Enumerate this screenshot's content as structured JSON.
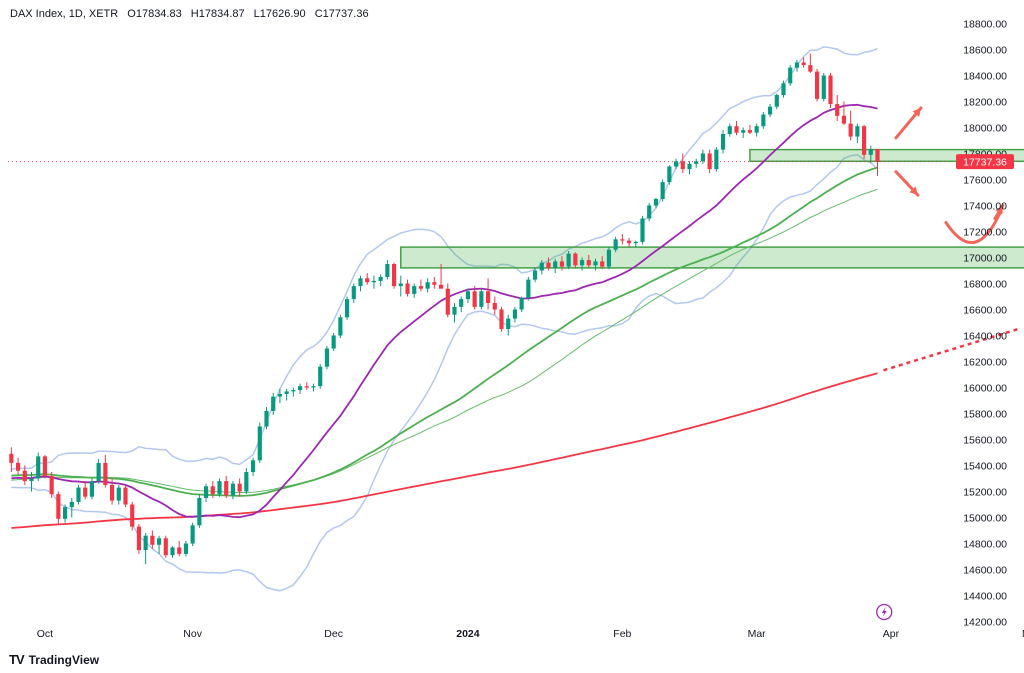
{
  "header": {
    "symbol": "DAX Index, 1D, XETR",
    "open": "O17834.83",
    "high": "H17834.87",
    "low": "L17626.90",
    "close": "C17737.36"
  },
  "branding": {
    "logo_text": "TradingView",
    "logo_icon": "tradingview-logo-icon"
  },
  "price_label": {
    "text": "17737.36",
    "color": "#f23645"
  },
  "chart_data": {
    "type": "candlestick",
    "title": "DAX Index, 1D, XETR",
    "y_axis": {
      "ticks": [
        "18800.00",
        "18600.00",
        "18400.00",
        "18200.00",
        "18000.00",
        "17800.00",
        "17600.00",
        "17400.00",
        "17200.00",
        "17000.00",
        "16800.00",
        "16600.00",
        "16400.00",
        "16200.00",
        "16000.00",
        "15800.00",
        "15600.00",
        "15400.00",
        "15200.00",
        "15000.00",
        "14800.00",
        "14600.00",
        "14400.00",
        "14200.00"
      ],
      "range": [
        14150,
        18950
      ]
    },
    "x_axis": {
      "labels": [
        {
          "text": "Oct",
          "bold": false,
          "t": 5
        },
        {
          "text": "Nov",
          "bold": false,
          "t": 27
        },
        {
          "text": "Dec",
          "bold": false,
          "t": 48
        },
        {
          "text": "2024",
          "bold": true,
          "t": 68
        },
        {
          "text": "Feb",
          "bold": false,
          "t": 91
        },
        {
          "text": "Mar",
          "bold": false,
          "t": 111
        },
        {
          "text": "Apr",
          "bold": false,
          "t": 131
        },
        {
          "text": "May",
          "bold": false,
          "t": 152
        }
      ],
      "days_shown": 140
    },
    "candles": [
      [
        15490,
        15540,
        15350,
        15420
      ],
      [
        15420,
        15460,
        15330,
        15360
      ],
      [
        15360,
        15400,
        15250,
        15280
      ],
      [
        15280,
        15350,
        15200,
        15300
      ],
      [
        15300,
        15500,
        15280,
        15470
      ],
      [
        15470,
        15480,
        15300,
        15320
      ],
      [
        15320,
        15350,
        15150,
        15180
      ],
      [
        15180,
        15200,
        14950,
        14990
      ],
      [
        14990,
        15100,
        14960,
        15080
      ],
      [
        15080,
        15150,
        15000,
        15120
      ],
      [
        15120,
        15250,
        15100,
        15230
      ],
      [
        15230,
        15280,
        15140,
        15160
      ],
      [
        15160,
        15300,
        15140,
        15280
      ],
      [
        15280,
        15450,
        15260,
        15420
      ],
      [
        15420,
        15480,
        15230,
        15250
      ],
      [
        15250,
        15300,
        15100,
        15130
      ],
      [
        15130,
        15250,
        15100,
        15230
      ],
      [
        15230,
        15250,
        15080,
        15100
      ],
      [
        15100,
        15120,
        14900,
        14930
      ],
      [
        14930,
        14950,
        14720,
        14750
      ],
      [
        14750,
        14880,
        14640,
        14860
      ],
      [
        14860,
        14900,
        14760,
        14790
      ],
      [
        14790,
        14860,
        14720,
        14840
      ],
      [
        14840,
        14860,
        14690,
        14710
      ],
      [
        14710,
        14780,
        14690,
        14770
      ],
      [
        14770,
        14820,
        14700,
        14720
      ],
      [
        14720,
        14820,
        14700,
        14800
      ],
      [
        14800,
        14960,
        14780,
        14940
      ],
      [
        14940,
        15180,
        14920,
        15150
      ],
      [
        15150,
        15260,
        15120,
        15240
      ],
      [
        15240,
        15280,
        15150,
        15180
      ],
      [
        15180,
        15300,
        15160,
        15280
      ],
      [
        15280,
        15320,
        15150,
        15170
      ],
      [
        15170,
        15280,
        15140,
        15260
      ],
      [
        15260,
        15300,
        15160,
        15200
      ],
      [
        15200,
        15380,
        15180,
        15350
      ],
      [
        15350,
        15460,
        15320,
        15440
      ],
      [
        15440,
        15730,
        15420,
        15700
      ],
      [
        15700,
        15850,
        15680,
        15820
      ],
      [
        15820,
        15960,
        15790,
        15930
      ],
      [
        15930,
        15990,
        15880,
        15950
      ],
      [
        15950,
        15990,
        15900,
        15970
      ],
      [
        15970,
        16000,
        15930,
        15980
      ],
      [
        15980,
        16030,
        15950,
        16010
      ],
      [
        16010,
        16040,
        15980,
        16000
      ],
      [
        16000,
        16030,
        15970,
        16010
      ],
      [
        16010,
        16180,
        15990,
        16160
      ],
      [
        16160,
        16320,
        16140,
        16300
      ],
      [
        16300,
        16420,
        16280,
        16400
      ],
      [
        16400,
        16560,
        16380,
        16540
      ],
      [
        16540,
        16700,
        16520,
        16680
      ],
      [
        16680,
        16800,
        16650,
        16780
      ],
      [
        16780,
        16860,
        16740,
        16840
      ],
      [
        16840,
        16880,
        16790,
        16810
      ],
      [
        16810,
        16860,
        16760,
        16820
      ],
      [
        16820,
        16870,
        16780,
        16850
      ],
      [
        16850,
        16980,
        16830,
        16950
      ],
      [
        16950,
        16960,
        16760,
        16780
      ],
      [
        16780,
        16860,
        16700,
        16800
      ],
      [
        16800,
        16830,
        16700,
        16720
      ],
      [
        16720,
        16800,
        16690,
        16780
      ],
      [
        16780,
        16830,
        16740,
        16760
      ],
      [
        16760,
        16840,
        16730,
        16810
      ],
      [
        16810,
        16850,
        16760,
        16790
      ],
      [
        16790,
        16950,
        16770,
        16760
      ],
      [
        16760,
        16800,
        16540,
        16560
      ],
      [
        16560,
        16650,
        16500,
        16620
      ],
      [
        16620,
        16700,
        16580,
        16680
      ],
      [
        16680,
        16760,
        16650,
        16740
      ],
      [
        16740,
        16780,
        16600,
        16620
      ],
      [
        16620,
        16760,
        16600,
        16740
      ],
      [
        16740,
        16840,
        16600,
        16650
      ],
      [
        16650,
        16700,
        16560,
        16600
      ],
      [
        16600,
        16620,
        16430,
        16450
      ],
      [
        16450,
        16560,
        16400,
        16530
      ],
      [
        16530,
        16620,
        16500,
        16600
      ],
      [
        16600,
        16700,
        16580,
        16690
      ],
      [
        16690,
        16850,
        16670,
        16830
      ],
      [
        16830,
        16920,
        16810,
        16900
      ],
      [
        16900,
        16980,
        16870,
        16960
      ],
      [
        16960,
        17000,
        16900,
        16920
      ],
      [
        16920,
        16990,
        16880,
        16970
      ],
      [
        16970,
        17010,
        16900,
        16930
      ],
      [
        16930,
        17050,
        16910,
        17030
      ],
      [
        17030,
        17040,
        16920,
        16940
      ],
      [
        16940,
        17000,
        16900,
        16980
      ],
      [
        16980,
        17020,
        16920,
        16940
      ],
      [
        16940,
        16990,
        16900,
        16970
      ],
      [
        16970,
        17010,
        16910,
        16930
      ],
      [
        16930,
        17080,
        16910,
        17060
      ],
      [
        17060,
        17160,
        17040,
        17140
      ],
      [
        17140,
        17180,
        17100,
        17130
      ],
      [
        17130,
        17150,
        17080,
        17110
      ],
      [
        17110,
        17130,
        17080,
        17120
      ],
      [
        17120,
        17320,
        17100,
        17300
      ],
      [
        17300,
        17420,
        17280,
        17400
      ],
      [
        17400,
        17460,
        17380,
        17450
      ],
      [
        17450,
        17600,
        17430,
        17580
      ],
      [
        17580,
        17710,
        17560,
        17700
      ],
      [
        17700,
        17760,
        17680,
        17740
      ],
      [
        17740,
        17800,
        17650,
        17680
      ],
      [
        17680,
        17740,
        17640,
        17720
      ],
      [
        17720,
        17760,
        17690,
        17740
      ],
      [
        17740,
        17830,
        17720,
        17800
      ],
      [
        17800,
        17830,
        17650,
        17680
      ],
      [
        17680,
        17850,
        17660,
        17830
      ],
      [
        17830,
        17980,
        17800,
        17950
      ],
      [
        17950,
        18030,
        17930,
        18010
      ],
      [
        18010,
        18050,
        17940,
        17960
      ],
      [
        17960,
        18000,
        17920,
        17980
      ],
      [
        17980,
        18020,
        17950,
        17960
      ],
      [
        17960,
        18030,
        17930,
        18010
      ],
      [
        18010,
        18120,
        17990,
        18100
      ],
      [
        18100,
        18180,
        18080,
        18160
      ],
      [
        18160,
        18260,
        18140,
        18250
      ],
      [
        18250,
        18360,
        18230,
        18340
      ],
      [
        18340,
        18480,
        18320,
        18460
      ],
      [
        18460,
        18520,
        18430,
        18500
      ],
      [
        18500,
        18540,
        18460,
        18480
      ],
      [
        18480,
        18570,
        18420,
        18430
      ],
      [
        18430,
        18450,
        18200,
        18220
      ],
      [
        18220,
        18420,
        18200,
        18400
      ],
      [
        18400,
        18420,
        18150,
        18180
      ],
      [
        18180,
        18250,
        18050,
        18090
      ],
      [
        18090,
        18200,
        18020,
        18030
      ],
      [
        18030,
        18130,
        17900,
        17930
      ],
      [
        17930,
        18030,
        17880,
        18010
      ],
      [
        18010,
        18020,
        17760,
        17790
      ],
      [
        17790,
        17860,
        17730,
        17830
      ],
      [
        17834.83,
        17834.87,
        17626.9,
        17737.36
      ]
    ],
    "moving_averages": [
      {
        "name": "MA 20",
        "color": "#9c27b0"
      },
      {
        "name": "MA 50",
        "color": "#4caf50"
      },
      {
        "name": "MA 50 (thin)",
        "color": "#66bb6a"
      },
      {
        "name": "MA 200",
        "color": "#f23645"
      }
    ],
    "bollinger_color": "#b2c8f0",
    "zones": [
      {
        "name": "upper-support-zone",
        "from": 17740,
        "to": 17830,
        "t0": 110,
        "t1": 155
      },
      {
        "name": "lower-support-zone",
        "from": 16920,
        "to": 17080,
        "t0": 58,
        "t1": 162
      }
    ],
    "current_price": 17737.36,
    "colors": {
      "up": "#089981",
      "down": "#f23645",
      "zone_fill": "#4caf50",
      "zone_stroke": "#43a047",
      "arrow": "#f2665a"
    }
  }
}
